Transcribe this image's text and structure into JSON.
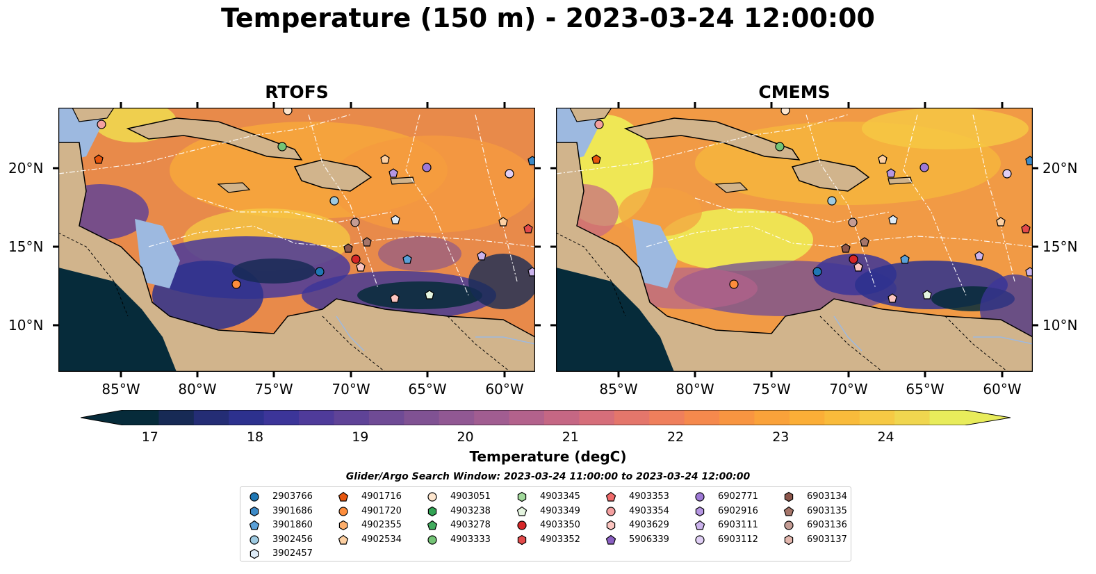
{
  "title": "Temperature (150 m) - 2023-03-24 12:00:00",
  "panels": [
    {
      "title": "RTOFS"
    },
    {
      "title": "CMEMS"
    }
  ],
  "map_axes": {
    "lon_labels": [
      "85°W",
      "80°W",
      "75°W",
      "70°W",
      "65°W",
      "60°W"
    ],
    "lat_labels": [
      "20°N",
      "15°N",
      "10°N"
    ]
  },
  "colorbar": {
    "label": "Temperature (degC)",
    "ticks": [
      "17",
      "18",
      "19",
      "20",
      "21",
      "22",
      "23",
      "24"
    ],
    "min": 16.75,
    "max": 24.75,
    "colors": [
      "#062b3a",
      "#172a55",
      "#242d75",
      "#2d318e",
      "#3c3599",
      "#4f3b9a",
      "#5f4397",
      "#6f4b95",
      "#805293",
      "#915893",
      "#a15d91",
      "#b3628c",
      "#c56784",
      "#d66e7a",
      "#e4766b",
      "#ef7f5c",
      "#f5894d",
      "#f89541",
      "#faa23a",
      "#fbae37",
      "#f9bb3b",
      "#f6c944",
      "#f0d64f",
      "#e8ec5b"
    ]
  },
  "legend": {
    "title": "Glider/Argo Search Window: 2023-03-24 11:00:00 to 2023-03-24 12:00:00",
    "items": [
      {
        "id": "2903766",
        "marker": "circle",
        "color": "#1f77b4"
      },
      {
        "id": "3901686",
        "marker": "hexagon",
        "color": "#3d8ac7"
      },
      {
        "id": "3901860",
        "marker": "pentagon",
        "color": "#5aa0d8"
      },
      {
        "id": "3902456",
        "marker": "circle",
        "color": "#9ecae1"
      },
      {
        "id": "3902457",
        "marker": "hexagon",
        "color": "#deebf7"
      },
      {
        "id": "4901716",
        "marker": "pentagon",
        "color": "#e6550d"
      },
      {
        "id": "4901720",
        "marker": "circle",
        "color": "#fd8d3c"
      },
      {
        "id": "4902355",
        "marker": "hexagon",
        "color": "#fdae6b"
      },
      {
        "id": "4902534",
        "marker": "pentagon",
        "color": "#fdd0a2"
      },
      {
        "id": "4903051",
        "marker": "circle",
        "color": "#fee6ce"
      },
      {
        "id": "4903238",
        "marker": "hexagon",
        "color": "#31a354"
      },
      {
        "id": "4903278",
        "marker": "pentagon",
        "color": "#41ab5d"
      },
      {
        "id": "4903333",
        "marker": "circle",
        "color": "#74c476"
      },
      {
        "id": "4903345",
        "marker": "hexagon",
        "color": "#a1d99b"
      },
      {
        "id": "4903349",
        "marker": "pentagon",
        "color": "#e5f5e0"
      },
      {
        "id": "4903350",
        "marker": "circle",
        "color": "#d62728"
      },
      {
        "id": "4903352",
        "marker": "hexagon",
        "color": "#e34a4a"
      },
      {
        "id": "4903353",
        "marker": "pentagon",
        "color": "#f06a6a"
      },
      {
        "id": "4903354",
        "marker": "circle",
        "color": "#f4a0a0"
      },
      {
        "id": "4903629",
        "marker": "hexagon",
        "color": "#fcc5c0"
      },
      {
        "id": "5906339",
        "marker": "pentagon",
        "color": "#8a5fc2"
      },
      {
        "id": "6902771",
        "marker": "circle",
        "color": "#9e79d6"
      },
      {
        "id": "6902916",
        "marker": "hexagon",
        "color": "#b596e2"
      },
      {
        "id": "6903111",
        "marker": "pentagon",
        "color": "#cbb3ec"
      },
      {
        "id": "6903112",
        "marker": "circle",
        "color": "#e0cff5"
      },
      {
        "id": "6903134",
        "marker": "hexagon",
        "color": "#8c564b"
      },
      {
        "id": "6903135",
        "marker": "pentagon",
        "color": "#a6766a"
      },
      {
        "id": "6903136",
        "marker": "circle",
        "color": "#c49c94"
      },
      {
        "id": "6903137",
        "marker": "hexagon",
        "color": "#e3b7ae"
      }
    ]
  }
}
